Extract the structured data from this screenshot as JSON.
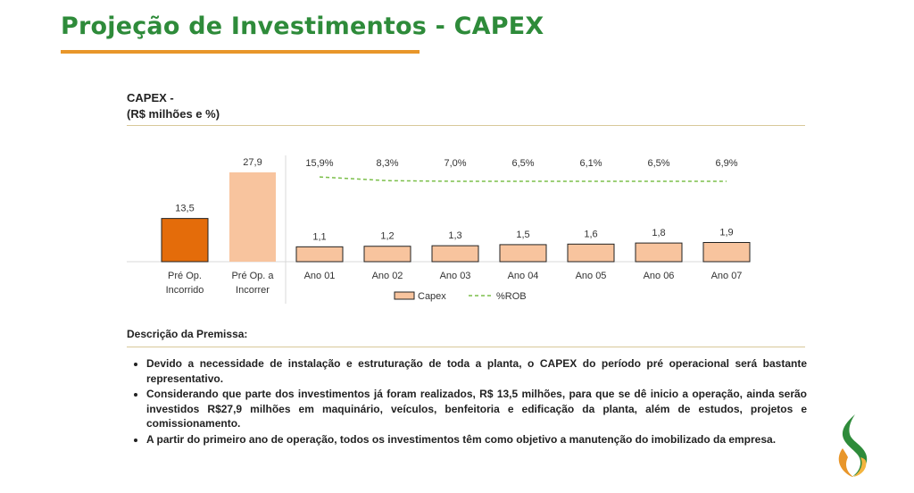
{
  "page": {
    "title": "Projeção de Investimentos - CAPEX",
    "chart_heading_line1": "CAPEX -",
    "chart_heading_line2": "(R$ milhões e %)",
    "description_title": "Descrição da Premissa:",
    "bullets": [
      "Devido a necessidade de instalação e estruturação de toda a planta, o CAPEX do período pré operacional será bastante representativo.",
      "Considerando que parte dos investimentos já foram realizados, R$ 13,5 milhões, para que se dê inicio a operação, ainda serão investidos R$27,9 milhões em maquinário, veículos, benfeitoria e edificação da planta, além de estudos, projetos e comissionamento.",
      "A partir do primeiro ano de operação, todos os investimentos têm como objetivo a manutenção do imobilizado da empresa."
    ],
    "colors": {
      "title_green": "#2e8b3a",
      "accent_orange": "#e8962a",
      "bar_dark": "#e46c0a",
      "bar_light": "#f8c49e",
      "rob_line": "#7bbf4a"
    },
    "logo_icon": "flame-logo-icon"
  },
  "chart_data": {
    "type": "bar",
    "pre_op": {
      "categories": [
        "Pré Op. Incorrido",
        "Pré Op. a Incorrer"
      ],
      "category_lines": [
        [
          "Pré Op.",
          "Incorrido"
        ],
        [
          "Pré Op. a",
          "Incorrer"
        ]
      ],
      "values": [
        13.5,
        27.9
      ],
      "labels": [
        "13,5",
        "27,9"
      ]
    },
    "annual": {
      "categories": [
        "Ano 01",
        "Ano 02",
        "Ano 03",
        "Ano 04",
        "Ano 05",
        "Ano 06",
        "Ano 07"
      ],
      "capex": [
        1.1,
        1.2,
        1.3,
        1.5,
        1.6,
        1.8,
        1.9
      ],
      "capex_labels": [
        "1,1",
        "1,2",
        "1,3",
        "1,5",
        "1,6",
        "1,8",
        "1,9"
      ],
      "rob_pct": [
        15.9,
        8.3,
        7.0,
        6.5,
        6.1,
        6.5,
        6.9
      ],
      "rob_labels": [
        "15,9%",
        "8,3%",
        "7,0%",
        "6,5%",
        "6,1%",
        "6,5%",
        "6,9%"
      ]
    },
    "series": [
      {
        "name": "Capex",
        "type": "bar"
      },
      {
        "name": "%ROB",
        "type": "line",
        "style": "dashed"
      }
    ],
    "legend_position": "bottom",
    "grid": false
  }
}
